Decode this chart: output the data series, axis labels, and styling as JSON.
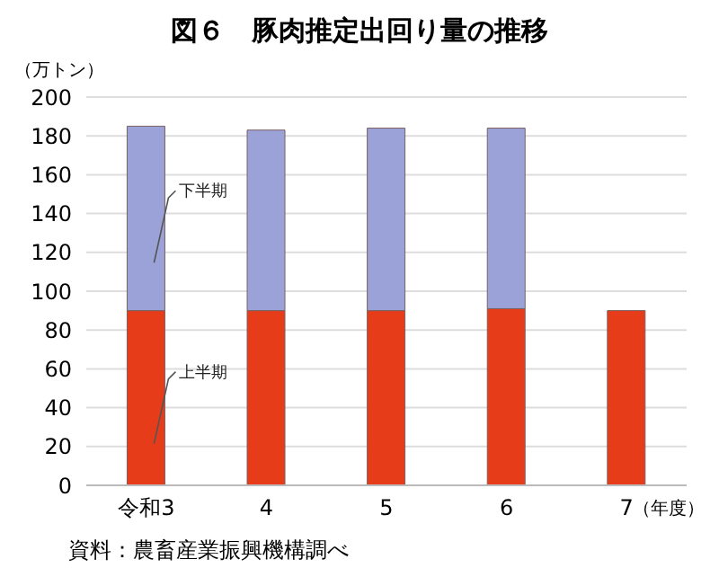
{
  "chart_data": {
    "type": "bar",
    "title": "図６　豚肉推定出回り量の推移",
    "ylabel": "（万トン）",
    "xlabel": "（年度）",
    "categories": [
      "令和3",
      "4",
      "5",
      "6",
      "7"
    ],
    "stacked": true,
    "series": [
      {
        "name": "上半期",
        "color": "#e63c1a",
        "values": [
          90,
          90,
          90,
          91,
          90
        ]
      },
      {
        "name": "下半期",
        "color": "#9aa2d8",
        "values": [
          95,
          93,
          94,
          93,
          null
        ]
      }
    ],
    "ylim": [
      0,
      200
    ],
    "yticks": [
      0,
      20,
      40,
      60,
      80,
      100,
      120,
      140,
      160,
      180,
      200
    ],
    "grid": "y",
    "annotations": [
      "資料：農畜産業振興機構調べ"
    ]
  }
}
